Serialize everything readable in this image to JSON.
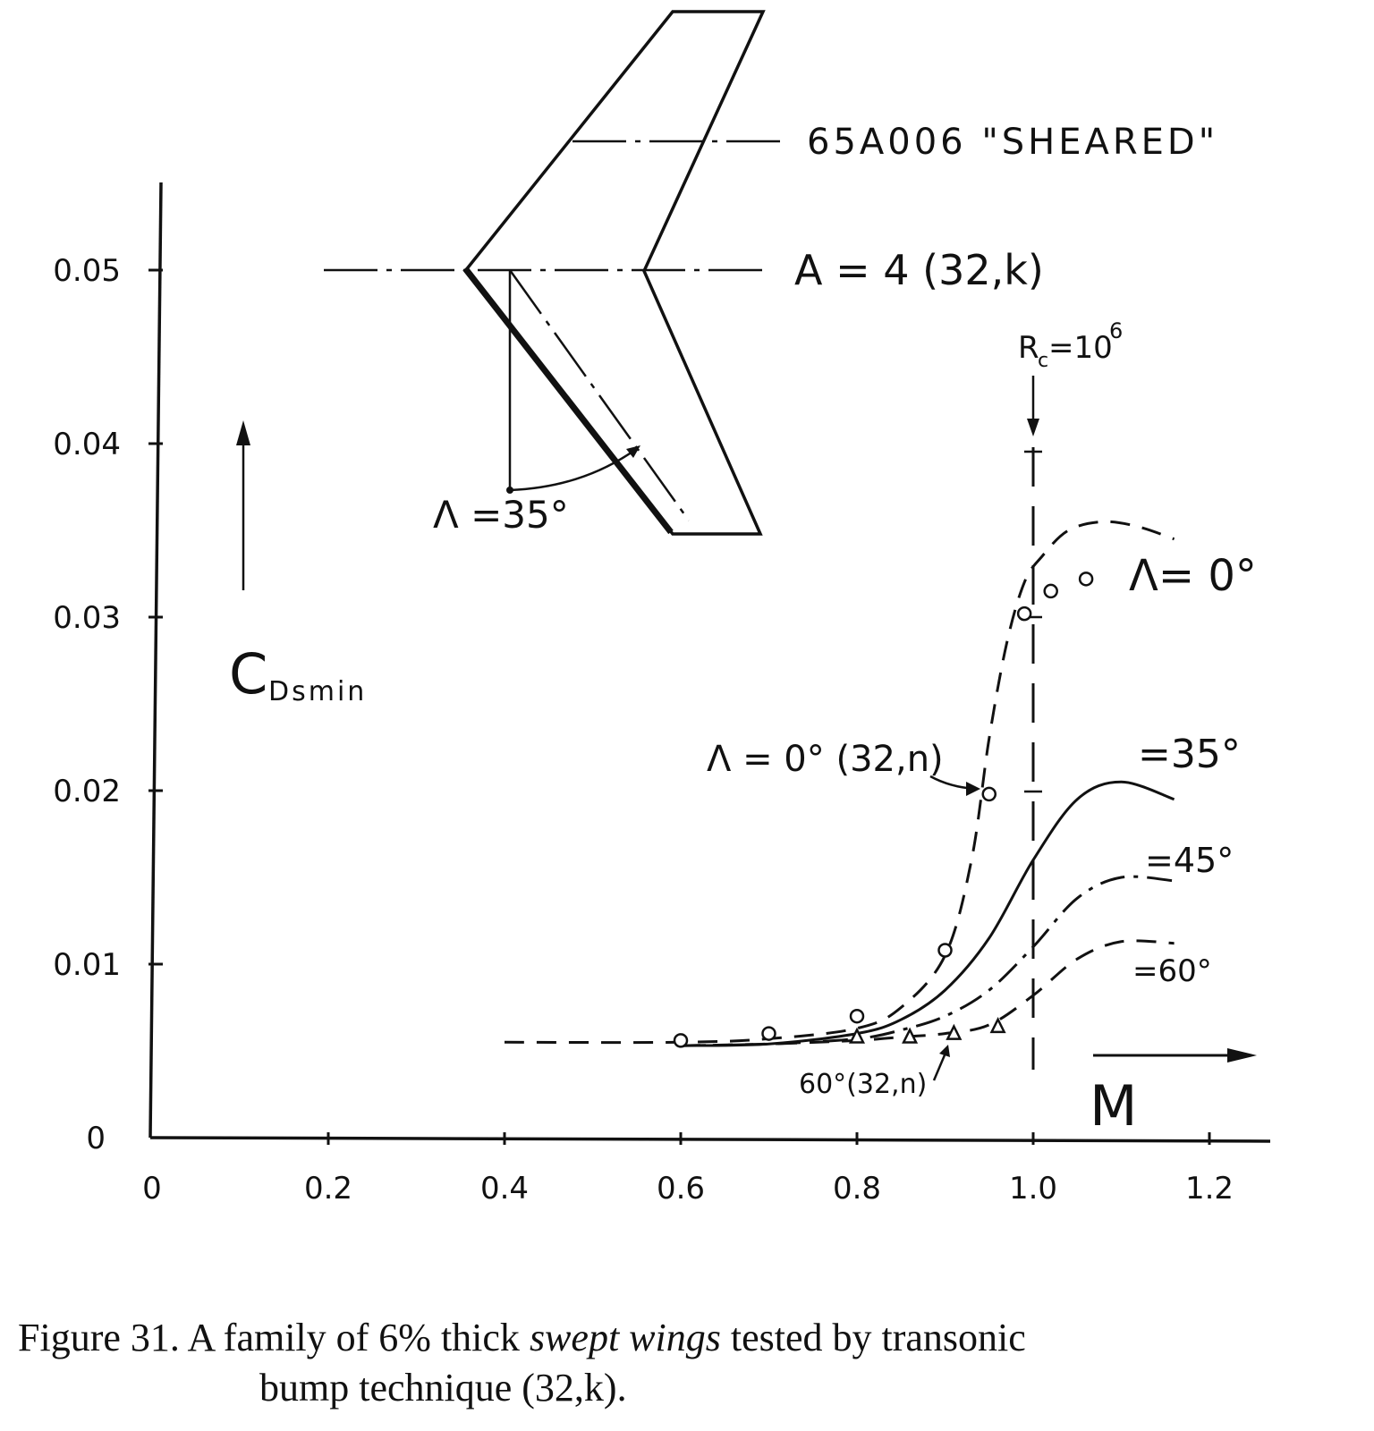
{
  "chart_data": {
    "type": "line",
    "xlabel": "M",
    "ylabel": "C",
    "ylabel_sub": "Dsmin",
    "xlim": [
      0,
      1.2
    ],
    "ylim": [
      0,
      0.05
    ],
    "xticks": [
      "0",
      "0.2",
      "0.4",
      "0.6",
      "0.8",
      "1.0",
      "1.2"
    ],
    "yticks": [
      "0",
      "0.01",
      "0.02",
      "0.03",
      "0.04",
      "0.05"
    ],
    "grid": false,
    "series": [
      {
        "name": "Λ= 0°",
        "style": "dashed",
        "x": [
          0.4,
          0.6,
          0.7,
          0.8,
          0.85,
          0.9,
          0.93,
          0.95,
          0.97,
          0.99,
          1.01,
          1.04,
          1.08,
          1.12,
          1.16
        ],
        "y": [
          0.0055,
          0.0055,
          0.0057,
          0.0063,
          0.0075,
          0.0105,
          0.016,
          0.023,
          0.0285,
          0.032,
          0.0335,
          0.035,
          0.0355,
          0.0352,
          0.0345
        ]
      },
      {
        "name": "=35°",
        "style": "solid",
        "x": [
          0.6,
          0.7,
          0.8,
          0.85,
          0.9,
          0.95,
          1.0,
          1.05,
          1.1,
          1.16
        ],
        "y": [
          0.0053,
          0.0054,
          0.006,
          0.0068,
          0.0085,
          0.0115,
          0.016,
          0.0195,
          0.0205,
          0.0195
        ]
      },
      {
        "name": "=45°",
        "style": "dash-dot",
        "x": [
          0.6,
          0.7,
          0.8,
          0.85,
          0.9,
          0.95,
          1.0,
          1.05,
          1.1,
          1.16
        ],
        "y": [
          0.0053,
          0.0054,
          0.0057,
          0.0062,
          0.007,
          0.0085,
          0.011,
          0.0138,
          0.015,
          0.0148
        ]
      },
      {
        "name": "=60°",
        "style": "dashed",
        "x": [
          0.6,
          0.7,
          0.8,
          0.85,
          0.9,
          0.95,
          1.0,
          1.05,
          1.1,
          1.16
        ],
        "y": [
          0.0053,
          0.0054,
          0.0056,
          0.0058,
          0.006,
          0.0065,
          0.0082,
          0.0103,
          0.0113,
          0.0112
        ]
      }
    ],
    "points_circles": {
      "x": [
        0.6,
        0.7,
        0.8,
        0.9,
        0.95,
        0.99,
        1.02,
        1.06
      ],
      "y": [
        0.0056,
        0.006,
        0.007,
        0.0108,
        0.0198,
        0.0302,
        0.0315,
        0.0322
      ]
    },
    "points_triangles": {
      "x": [
        0.8,
        0.86,
        0.91,
        0.96
      ],
      "y": [
        0.0058,
        0.0058,
        0.006,
        0.0064
      ]
    },
    "marker_line": {
      "x": 1.0,
      "label_main": "R",
      "label_sub": "c",
      "label_rest": "=10",
      "label_sup": "6"
    },
    "annotations": {
      "point_label_0": "Λ = 0° (32,n)",
      "point_label_60": "60°(32,n)",
      "wing_label_1": "65A006  \"SHEARED\"",
      "wing_label_2": "A = 4  (32,k)",
      "wing_label_3": "Λ  =35°"
    },
    "colors": {
      "ink": "#111111",
      "background": "#ffffff"
    }
  },
  "caption": {
    "line1_a": "Figure 31. A family of 6% thick ",
    "line1_b": "swept wings",
    "line1_c": " tested by transonic",
    "line2": "bump technique (32,k)."
  }
}
